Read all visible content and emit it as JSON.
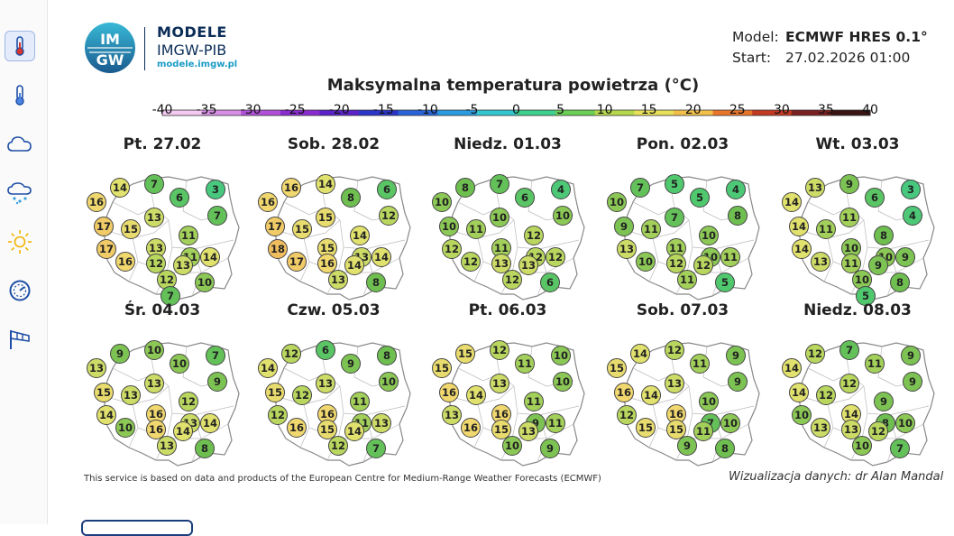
{
  "logo": {
    "mark_top": "IM",
    "mark_bottom": "GW",
    "name": "MODELE",
    "org": "IMGW-PIB",
    "url": "modele.imgw.pl"
  },
  "meta": {
    "model_label": "Model:",
    "model_value": "ECMWF HRES 0.1°",
    "start_label": "Start:",
    "start_value": "27.02.2026 01:00"
  },
  "title": "Maksymalna temperatura powietrza (°C)",
  "scale": {
    "ticks": [
      "-40",
      "-35",
      "-30",
      "-25",
      "-20",
      "-15",
      "-10",
      "-5",
      "0",
      "5",
      "10",
      "15",
      "20",
      "25",
      "30",
      "35",
      "40"
    ],
    "colors": [
      "#f4c9f2",
      "#d98ee6",
      "#b050d8",
      "#8a2bd0",
      "#5a22c8",
      "#2b36c8",
      "#2864d8",
      "#2a9be0",
      "#33c6cf",
      "#3fcf8e",
      "#6bcf55",
      "#b5d84c",
      "#e8e05a",
      "#f2c04a",
      "#e8762a",
      "#c23a22",
      "#7a1f1f",
      "#3a1414"
    ]
  },
  "icons": [
    "thermometer-icon",
    "thermometer-icon",
    "cloud-icon",
    "rain-snow-icon",
    "sun-icon",
    "gauge-icon",
    "windsock-icon"
  ],
  "days": [
    {
      "label": "Pt. 27.02",
      "values": [
        14,
        7,
        3,
        16,
        6,
        7,
        13,
        17,
        15,
        11,
        13,
        17,
        11,
        16,
        12,
        14,
        13,
        12,
        10,
        7
      ]
    },
    {
      "label": "Sob. 28.02",
      "values": [
        16,
        14,
        6,
        16,
        8,
        12,
        15,
        17,
        15,
        14,
        15,
        18,
        13,
        17,
        16,
        14,
        14,
        13,
        8,
        null
      ]
    },
    {
      "label": "Niedz. 01.03",
      "values": [
        8,
        7,
        4,
        10,
        6,
        10,
        10,
        10,
        11,
        12,
        11,
        12,
        12,
        12,
        13,
        12,
        13,
        12,
        6,
        null
      ]
    },
    {
      "label": "Pon. 02.03",
      "values": [
        7,
        5,
        4,
        10,
        5,
        8,
        7,
        9,
        11,
        10,
        11,
        13,
        10,
        10,
        12,
        11,
        12,
        11,
        5,
        null
      ]
    },
    {
      "label": "Wt. 03.03",
      "values": [
        13,
        9,
        3,
        14,
        6,
        4,
        11,
        14,
        11,
        8,
        10,
        14,
        10,
        13,
        11,
        9,
        9,
        10,
        8,
        5
      ]
    },
    {
      "label": "Śr. 04.03",
      "values": [
        9,
        10,
        7,
        13,
        10,
        9,
        13,
        15,
        13,
        12,
        16,
        14,
        13,
        10,
        16,
        14,
        14,
        13,
        8,
        null
      ]
    },
    {
      "label": "Czw. 05.03",
      "values": [
        12,
        6,
        8,
        14,
        9,
        10,
        13,
        15,
        12,
        11,
        16,
        12,
        11,
        16,
        15,
        13,
        14,
        12,
        7,
        null
      ]
    },
    {
      "label": "Pt. 06.03",
      "values": [
        15,
        12,
        10,
        15,
        11,
        10,
        13,
        16,
        14,
        11,
        16,
        13,
        9,
        16,
        15,
        11,
        13,
        10,
        9,
        null
      ]
    },
    {
      "label": "Sob. 07.03",
      "values": [
        14,
        12,
        9,
        15,
        11,
        9,
        13,
        16,
        14,
        10,
        16,
        12,
        7,
        15,
        15,
        10,
        11,
        9,
        8,
        null
      ]
    },
    {
      "label": "Niedz. 08.03",
      "values": [
        12,
        7,
        9,
        14,
        11,
        9,
        12,
        14,
        12,
        9,
        14,
        10,
        8,
        13,
        13,
        10,
        12,
        10,
        7,
        null
      ]
    }
  ],
  "credit_left": "This service is based on data and products of the European Centre for Medium-Range Weather Forecasts (ECMWF)",
  "credit_right": "Wizualizacja danych: dr Alan Mandal"
}
